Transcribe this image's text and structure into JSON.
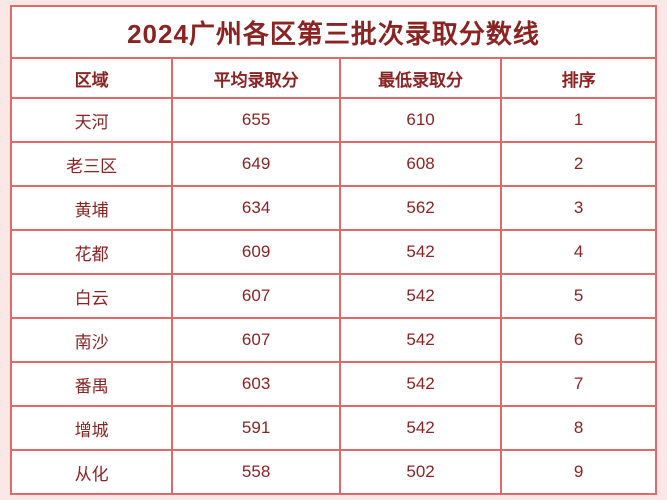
{
  "page": {
    "title": "2024广州各区第三批次录取分数线"
  },
  "colors": {
    "page_background": "#fbe7e6",
    "cell_background": "#ffffff",
    "border": "#e06a6a",
    "text": "#8b2323"
  },
  "chart_data": {
    "type": "table",
    "title": "2024广州各区第三批次录取分数线",
    "columns": [
      "区域",
      "平均录取分",
      "最低录取分",
      "排序"
    ],
    "rows": [
      [
        "天河",
        "655",
        "610",
        "1"
      ],
      [
        "老三区",
        "649",
        "608",
        "2"
      ],
      [
        "黄埔",
        "634",
        "562",
        "3"
      ],
      [
        "花都",
        "609",
        "542",
        "4"
      ],
      [
        "白云",
        "607",
        "542",
        "5"
      ],
      [
        "南沙",
        "607",
        "542",
        "6"
      ],
      [
        "番禺",
        "603",
        "542",
        "7"
      ],
      [
        "增城",
        "591",
        "542",
        "8"
      ],
      [
        "从化",
        "558",
        "502",
        "9"
      ]
    ]
  }
}
